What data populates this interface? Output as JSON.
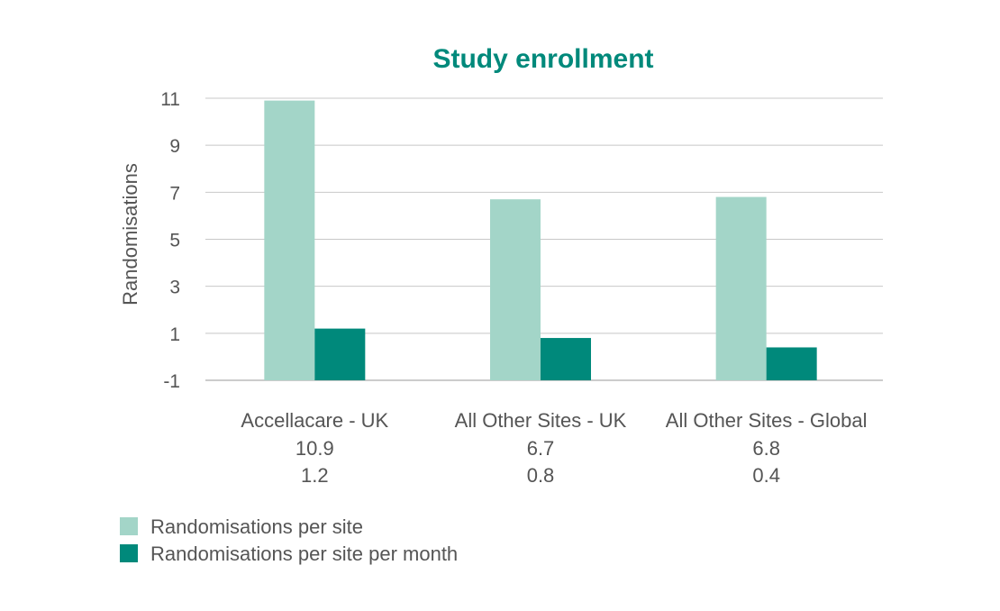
{
  "chart_data": {
    "type": "bar",
    "title": "Study enrollment",
    "ylabel": "Randomisations",
    "xlabel": "",
    "ylim": [
      -1,
      11
    ],
    "yticks": [
      11,
      9,
      7,
      5,
      3,
      1,
      -1
    ],
    "grid": true,
    "legend_position": "bottom-left",
    "categories": [
      {
        "name": "Accellacare - UK",
        "line2": "10.9",
        "line3": "1.2"
      },
      {
        "name": "All Other Sites - UK",
        "line2": "6.7",
        "line3": "0.8"
      },
      {
        "name": "All Other Sites - Global",
        "line2": "6.8",
        "line3": "0.4"
      }
    ],
    "series": [
      {
        "name": "Randomisations per site",
        "values": [
          10.9,
          6.7,
          6.8
        ],
        "color": "#a3d5c8"
      },
      {
        "name": "Randomisations per site per month",
        "values": [
          1.2,
          0.8,
          0.4
        ],
        "color": "#00897b"
      }
    ],
    "title_color": "#00897b"
  }
}
